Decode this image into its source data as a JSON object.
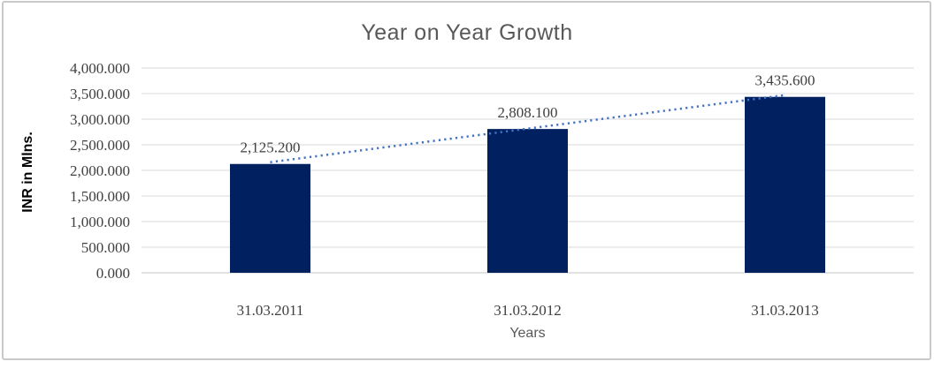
{
  "title": "Year on Year Growth",
  "frame": {
    "background": "#ffffff",
    "border_color": "#c9c9c9"
  },
  "chart_data": {
    "type": "bar",
    "title": "Year on Year Growth",
    "categories": [
      "31.03.2011",
      "31.03.2012",
      "31.03.2013"
    ],
    "series": [
      {
        "name": "INR in Mlns.",
        "values": [
          2125.2,
          2808.1,
          3435.6
        ]
      }
    ],
    "data_labels": [
      "2,125.200",
      "2,808.100",
      "3,435.600"
    ],
    "xlabel": "Years",
    "ylabel": "INR in Mlns.",
    "ylim": [
      0,
      4000
    ],
    "ytick_interval": 500,
    "ytick_labels": [
      "0.000",
      "500.000",
      "1,000.000",
      "1,500.000",
      "2,000.000",
      "2,500.000",
      "3,000.000",
      "3,500.000",
      "4,000.000"
    ],
    "grid": true,
    "legend": "none",
    "bar_color": "#002060",
    "gridline_color": "#d9d9d9",
    "zero_line_color": "#c6c6c6",
    "tick_label_color": "#404040",
    "data_label_color": "#404040",
    "title_color": "#595959",
    "trendline": {
      "type": "linear",
      "style": "dotted",
      "color": "#4472c4"
    }
  }
}
